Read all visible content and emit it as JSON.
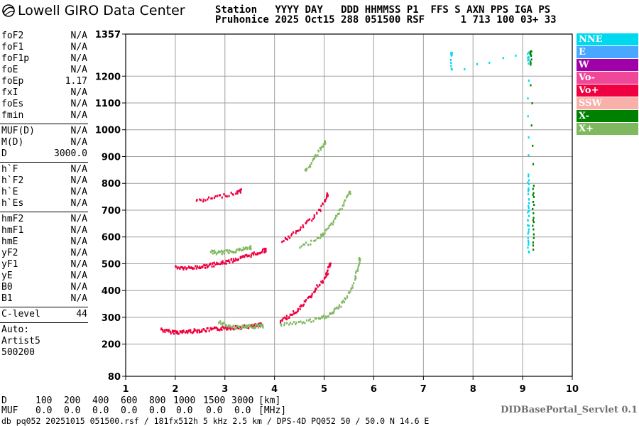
{
  "header": {
    "logo_text": "Lowell GIRO Data Center",
    "line1": [
      "Station",
      "YYYY",
      "DAY",
      "DDD",
      "HHMMSS",
      "P1",
      "FFS",
      "S",
      "AXN",
      "PPS",
      "IGA",
      "PS"
    ],
    "line2": [
      "Pruhonice",
      "2025",
      "Oct15",
      "288",
      "051500",
      "RSF",
      "1",
      "713",
      "100",
      "03+",
      "33"
    ]
  },
  "params": {
    "group1": [
      {
        "name": "foF2",
        "value": "N/A"
      },
      {
        "name": "foF1",
        "value": "N/A"
      },
      {
        "name": "foF1p",
        "value": "N/A"
      },
      {
        "name": "foE",
        "value": "N/A"
      },
      {
        "name": "foEp",
        "value": "1.17"
      },
      {
        "name": "fxI",
        "value": "N/A"
      },
      {
        "name": "foEs",
        "value": "N/A"
      },
      {
        "name": "fmin",
        "value": "N/A"
      }
    ],
    "group2": [
      {
        "name": "MUF(D)",
        "value": "N/A"
      },
      {
        "name": "M(D)",
        "value": "N/A"
      },
      {
        "name": "D",
        "value": "3000.0"
      }
    ],
    "group3": [
      {
        "name": "h`F",
        "value": "N/A"
      },
      {
        "name": "h`F2",
        "value": "N/A"
      },
      {
        "name": "h`E",
        "value": "N/A"
      },
      {
        "name": "h`Es",
        "value": "N/A"
      }
    ],
    "group4": [
      {
        "name": "hmF2",
        "value": "N/A"
      },
      {
        "name": "hmF1",
        "value": "N/A"
      },
      {
        "name": "hmE",
        "value": "N/A"
      },
      {
        "name": "yF2",
        "value": "N/A"
      },
      {
        "name": "yF1",
        "value": "N/A"
      },
      {
        "name": "yE",
        "value": "N/A"
      },
      {
        "name": "B0",
        "value": "N/A"
      },
      {
        "name": "B1",
        "value": "N/A"
      }
    ],
    "group5": [
      {
        "name": "C-level",
        "value": "44"
      }
    ],
    "auto_lines": [
      "Auto:",
      "Artist5",
      "500200"
    ]
  },
  "legend": [
    {
      "label": "NNE",
      "color": "#00d8f0"
    },
    {
      "label": "E",
      "color": "#48a8ff"
    },
    {
      "label": "W",
      "color": "#a000a8"
    },
    {
      "label": "Vo-",
      "color": "#f04898"
    },
    {
      "label": "Vo+",
      "color": "#f00040"
    },
    {
      "label": "SSW",
      "color": "#f8b0a8"
    },
    {
      "label": "X-",
      "color": "#008000"
    },
    {
      "label": "X+",
      "color": "#80b860"
    }
  ],
  "chart_data": {
    "type": "scatter",
    "x_axis": {
      "range": [
        1,
        10
      ],
      "ticks": [
        "1",
        "2",
        "3",
        "4",
        "5",
        "6",
        "7",
        "8",
        "9",
        "10"
      ]
    },
    "y_axis": {
      "range": [
        80,
        1357
      ],
      "ticks": [
        "80",
        "200",
        "300",
        "400",
        "500",
        "600",
        "700",
        "800",
        "900",
        "1000",
        "1100",
        "1200",
        "1357"
      ]
    },
    "grid": true,
    "legend_position": "right",
    "traces": [
      {
        "mode": "Vo+",
        "points": [
          [
            1.7,
            260
          ],
          [
            1.8,
            252
          ],
          [
            1.9,
            250
          ],
          [
            2.0,
            249
          ],
          [
            2.1,
            248
          ],
          [
            2.2,
            250
          ],
          [
            2.3,
            252
          ],
          [
            2.4,
            254
          ],
          [
            2.5,
            255
          ],
          [
            2.6,
            256
          ],
          [
            2.7,
            258
          ],
          [
            2.8,
            260
          ],
          [
            2.9,
            262
          ],
          [
            3.0,
            264
          ],
          [
            3.1,
            265
          ],
          [
            3.2,
            266
          ],
          [
            3.3,
            267
          ],
          [
            3.4,
            268
          ],
          [
            3.5,
            270
          ],
          [
            3.6,
            272
          ],
          [
            3.7,
            275
          ]
        ]
      },
      {
        "mode": "X+",
        "points": [
          [
            2.85,
            290
          ],
          [
            2.95,
            280
          ],
          [
            3.05,
            272
          ],
          [
            3.15,
            268
          ],
          [
            3.25,
            266
          ],
          [
            3.35,
            266
          ],
          [
            3.45,
            268
          ],
          [
            3.55,
            270
          ],
          [
            3.65,
            272
          ],
          [
            3.75,
            272
          ]
        ]
      },
      {
        "mode": "Vo+",
        "points": [
          [
            2.0,
            492
          ],
          [
            2.1,
            488
          ],
          [
            2.2,
            487
          ],
          [
            2.3,
            488
          ],
          [
            2.4,
            490
          ],
          [
            2.5,
            492
          ],
          [
            2.6,
            495
          ],
          [
            2.7,
            498
          ],
          [
            2.8,
            502
          ],
          [
            2.9,
            506
          ],
          [
            3.0,
            510
          ],
          [
            3.1,
            515
          ],
          [
            3.2,
            520
          ],
          [
            3.3,
            524
          ],
          [
            3.4,
            530
          ],
          [
            3.5,
            536
          ],
          [
            3.6,
            542
          ],
          [
            3.7,
            548
          ],
          [
            3.8,
            555
          ]
        ]
      },
      {
        "mode": "X+",
        "points": [
          [
            2.7,
            548
          ],
          [
            2.8,
            545
          ],
          [
            2.9,
            545
          ],
          [
            3.0,
            548
          ],
          [
            3.1,
            550
          ],
          [
            3.2,
            553
          ],
          [
            3.3,
            556
          ],
          [
            3.4,
            560
          ],
          [
            3.5,
            565
          ]
        ]
      },
      {
        "mode": "Vo+",
        "points": [
          [
            2.4,
            735
          ],
          [
            2.6,
            742
          ],
          [
            2.8,
            752
          ],
          [
            3.0,
            760
          ],
          [
            3.2,
            768
          ],
          [
            3.3,
            775
          ]
        ]
      },
      {
        "mode": "Vo+",
        "points": [
          [
            4.1,
            290
          ],
          [
            4.2,
            300
          ],
          [
            4.3,
            310
          ],
          [
            4.4,
            325
          ],
          [
            4.5,
            340
          ],
          [
            4.6,
            360
          ],
          [
            4.7,
            380
          ],
          [
            4.8,
            405
          ],
          [
            4.9,
            430
          ],
          [
            5.0,
            450
          ],
          [
            5.05,
            470
          ],
          [
            5.1,
            500
          ]
        ]
      },
      {
        "mode": "X+",
        "points": [
          [
            4.1,
            278
          ],
          [
            4.3,
            280
          ],
          [
            4.5,
            284
          ],
          [
            4.7,
            290
          ],
          [
            4.9,
            298
          ],
          [
            5.0,
            305
          ],
          [
            5.1,
            315
          ],
          [
            5.2,
            328
          ],
          [
            5.3,
            345
          ],
          [
            5.4,
            370
          ],
          [
            5.5,
            400
          ],
          [
            5.6,
            440
          ],
          [
            5.65,
            480
          ],
          [
            5.7,
            520
          ]
        ]
      },
      {
        "mode": "Vo+",
        "points": [
          [
            4.15,
            590
          ],
          [
            4.3,
            605
          ],
          [
            4.45,
            625
          ],
          [
            4.6,
            650
          ],
          [
            4.75,
            675
          ],
          [
            4.9,
            705
          ],
          [
            5.0,
            735
          ],
          [
            5.05,
            760
          ]
        ]
      },
      {
        "mode": "X+",
        "points": [
          [
            4.5,
            570
          ],
          [
            4.7,
            580
          ],
          [
            4.9,
            600
          ],
          [
            5.0,
            620
          ],
          [
            5.1,
            645
          ],
          [
            5.2,
            670
          ],
          [
            5.3,
            700
          ],
          [
            5.4,
            735
          ],
          [
            5.5,
            770
          ]
        ]
      },
      {
        "mode": "X+",
        "points": [
          [
            4.6,
            850
          ],
          [
            4.7,
            870
          ],
          [
            4.8,
            900
          ],
          [
            4.9,
            930
          ],
          [
            5.0,
            955
          ]
        ]
      },
      {
        "mode": "NNE",
        "points": [
          [
            9.1,
            540
          ],
          [
            9.1,
            600
          ],
          [
            9.1,
            660
          ],
          [
            9.1,
            720
          ],
          [
            9.1,
            780
          ],
          [
            9.1,
            840
          ],
          [
            9.1,
            1255
          ],
          [
            9.1,
            1290
          ],
          [
            7.55,
            1225
          ],
          [
            7.55,
            1285
          ]
        ]
      },
      {
        "mode": "X-",
        "points": [
          [
            9.2,
            560
          ],
          [
            9.2,
            640
          ],
          [
            9.2,
            720
          ],
          [
            9.2,
            800
          ],
          [
            9.15,
            1250
          ],
          [
            9.15,
            1290
          ]
        ]
      }
    ]
  },
  "distance_table": {
    "labels": [
      "D",
      "MUF"
    ],
    "columns": [
      "100",
      "200",
      "400",
      "600",
      "800",
      "1000",
      "1500",
      "3000"
    ],
    "muf": [
      "0.0",
      "0.0",
      "0.0",
      "0.0",
      "0.0",
      "0.0",
      "0.0",
      "0.0"
    ],
    "units": [
      "[km]",
      "[MHz]"
    ]
  },
  "portal_label": "DIDBasePortal_Servlet 0.1",
  "footer": "db pq052 20251015 051500.rsf / 181fx512h 5 kHz 2.5 km / DPS-4D PQ052 50 / 50.0 N 14.6 E"
}
